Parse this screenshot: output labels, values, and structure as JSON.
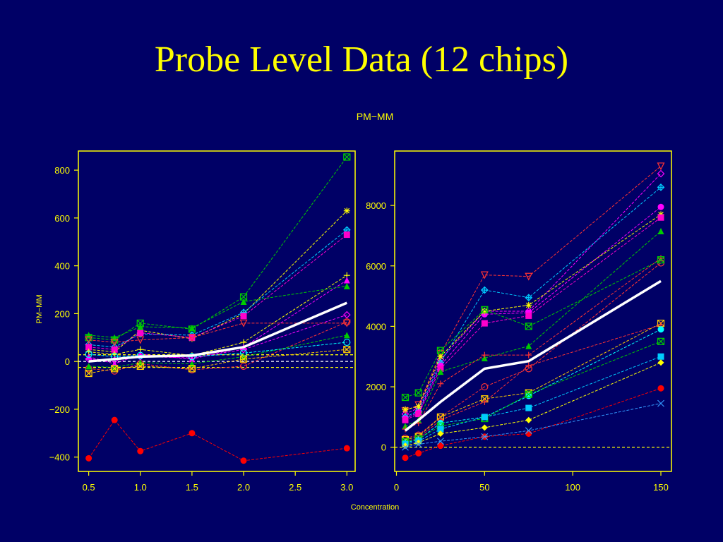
{
  "slide": {
    "title": "Probe Level Data (12 chips)"
  },
  "chart_data": {
    "type": "line",
    "title": "PM−MM",
    "xlabel": "Concentration",
    "colors": {
      "background": "#000066",
      "axis": "#FFFF00",
      "text": "#FFFF00",
      "median": "#FFFFFF"
    },
    "panels": [
      {
        "name": "left",
        "ylabel": "PM−MM",
        "x": [
          0.5,
          0.75,
          1.0,
          1.5,
          2.0,
          3.0
        ],
        "xlim": [
          0.4,
          3.08
        ],
        "ylim": [
          -460,
          880
        ],
        "xticks": [
          0.5,
          1.0,
          1.5,
          2.0,
          2.5,
          3.0
        ],
        "xtick_labels": [
          "0.5",
          "1.0",
          "1.5",
          "2.0",
          "2.5",
          "3.0"
        ],
        "yticks": [
          -400,
          -200,
          0,
          200,
          400,
          600,
          800
        ],
        "ytick_labels": [
          "−400",
          "−200",
          "0",
          "200",
          "400",
          "600",
          "800"
        ],
        "hlines": [
          {
            "y": 0,
            "color": "#FFFFFF"
          },
          {
            "y": 28,
            "color": "#FFFF00"
          },
          {
            "y": -25,
            "color": "#FFFF00"
          }
        ],
        "median": [
          0,
          10,
          20,
          25,
          60,
          245
        ],
        "series": [
          {
            "color": "#00CC00",
            "marker": "boxx",
            "values": [
              100,
              90,
              160,
              135,
              270,
              855
            ]
          },
          {
            "color": "#FFFF00",
            "marker": "star",
            "values": [
              50,
              40,
              130,
              95,
              200,
              630
            ]
          },
          {
            "color": "#00CCFF",
            "marker": "diamondplus",
            "values": [
              70,
              60,
              115,
              110,
              205,
              550
            ]
          },
          {
            "color": "#FF00CC",
            "marker": "square",
            "values": [
              60,
              50,
              120,
              100,
              190,
              530
            ]
          },
          {
            "color": "#FFFF00",
            "marker": "plus",
            "values": [
              40,
              30,
              50,
              25,
              80,
              360
            ]
          },
          {
            "color": "#FF00FF",
            "marker": "triangle",
            "values": [
              20,
              -10,
              30,
              10,
              60,
              340
            ]
          },
          {
            "color": "#00CC00",
            "marker": "triangle",
            "values": [
              110,
              100,
              145,
              140,
              250,
              315
            ]
          },
          {
            "color": "#FF00FF",
            "marker": "diamond",
            "values": [
              10,
              5,
              20,
              15,
              50,
              195
            ]
          },
          {
            "color": "#FF3333",
            "marker": "circle",
            "values": [
              -30,
              -40,
              -10,
              -35,
              -20,
              165
            ]
          },
          {
            "color": "#FF3333",
            "marker": "tridown",
            "values": [
              90,
              80,
              90,
              100,
              160,
              160
            ]
          },
          {
            "color": "#00CC00",
            "marker": "triangle",
            "values": [
              -20,
              -25,
              -5,
              -10,
              20,
              110
            ]
          },
          {
            "color": "#00FFFF",
            "marker": "circle",
            "values": [
              30,
              20,
              25,
              20,
              35,
              80
            ]
          },
          {
            "color": "#FFCC00",
            "marker": "boxx",
            "values": [
              -50,
              -30,
              -20,
              -30,
              10,
              50
            ]
          },
          {
            "color": "#FF0000",
            "marker": "dot",
            "values": [
              -405,
              -245,
              -375,
              -300,
              -415,
              -363
            ]
          }
        ]
      },
      {
        "name": "right",
        "x": [
          5,
          12.5,
          25,
          50,
          75,
          150
        ],
        "xlim": [
          -1,
          156
        ],
        "ylim": [
          -800,
          9800
        ],
        "xticks": [
          0,
          50,
          100,
          150
        ],
        "xtick_labels": [
          "0",
          "50",
          "100",
          "150"
        ],
        "yticks": [
          0,
          2000,
          4000,
          6000,
          8000
        ],
        "ytick_labels": [
          "0",
          "2000",
          "4000",
          "6000",
          "8000"
        ],
        "hlines": [
          {
            "y": 0,
            "color": "#FFFF00"
          }
        ],
        "median": [
          550,
          900,
          1500,
          2600,
          2850,
          5500
        ],
        "series": [
          {
            "color": "#FF3333",
            "marker": "tridown",
            "values": [
              1200,
              1400,
              3100,
              5700,
              5650,
              9300
            ]
          },
          {
            "color": "#FF00FF",
            "marker": "diamond",
            "values": [
              1100,
              1300,
              2900,
              4500,
              4500,
              9050
            ]
          },
          {
            "color": "#00CCFF",
            "marker": "diamondplus",
            "values": [
              1000,
              1200,
              2800,
              5200,
              4950,
              8600
            ]
          },
          {
            "color": "#FF00FF",
            "marker": "dot",
            "values": [
              950,
              1150,
              2700,
              4400,
              4450,
              7950
            ]
          },
          {
            "color": "#FFFF00",
            "marker": "star",
            "values": [
              1250,
              1350,
              3000,
              4500,
              4700,
              7700
            ]
          },
          {
            "color": "#FF00CC",
            "marker": "square",
            "values": [
              900,
              1100,
              2600,
              4100,
              4350,
              7600
            ]
          },
          {
            "color": "#00CC00",
            "marker": "triangle",
            "values": [
              700,
              900,
              2500,
              2950,
              3350,
              7150
            ]
          },
          {
            "color": "#FF3333",
            "marker": "plus",
            "values": [
              600,
              800,
              2100,
              3050,
              3050,
              6250
            ]
          },
          {
            "color": "#FF3333",
            "marker": "circle",
            "values": [
              300,
              400,
              1000,
              2000,
              2600,
              6100
            ]
          },
          {
            "color": "#00CC00",
            "marker": "boxx",
            "values": [
              1650,
              1800,
              3200,
              4550,
              4000,
              6200
            ]
          },
          {
            "color": "#FFCC00",
            "marker": "boxx",
            "values": [
              250,
              350,
              1000,
              1600,
              1800,
              4100
            ]
          },
          {
            "color": "#FF3333",
            "marker": "plus",
            "values": [
              200,
              300,
              900,
              1500,
              2700,
              4050
            ]
          },
          {
            "color": "#00FFFF",
            "marker": "dot",
            "values": [
              150,
              250,
              800,
              1000,
              1700,
              3900
            ]
          },
          {
            "color": "#00CC00",
            "marker": "boxx",
            "values": [
              180,
              280,
              700,
              950,
              1750,
              3500
            ]
          },
          {
            "color": "#00CCFF",
            "marker": "square",
            "values": [
              100,
              200,
              600,
              1000,
              1300,
              3000
            ]
          },
          {
            "color": "#FFFF00",
            "marker": "diamondsolid",
            "values": [
              50,
              150,
              450,
              650,
              900,
              2800
            ]
          },
          {
            "color": "#FF0000",
            "marker": "dot",
            "values": [
              -350,
              -200,
              50,
              350,
              450,
              1950
            ]
          },
          {
            "color": "#3399FF",
            "marker": "x",
            "values": [
              0,
              100,
              200,
              350,
              550,
              1450
            ]
          }
        ]
      }
    ]
  }
}
